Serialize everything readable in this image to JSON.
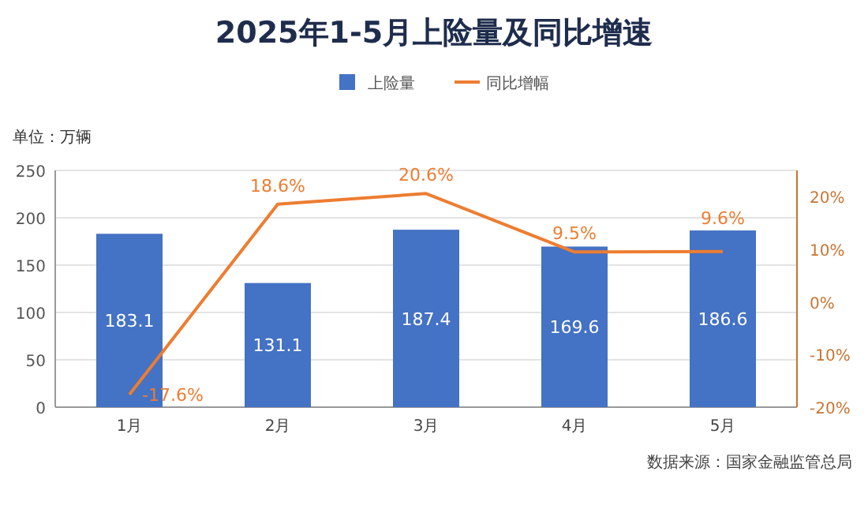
{
  "chart_data": {
    "type": "bar",
    "title": "2025年1-5月上险量及同比增速",
    "ylabel": "单位：万辆",
    "categories": [
      "1月",
      "2月",
      "3月",
      "4月",
      "5月"
    ],
    "series": [
      {
        "name": "上险量",
        "color": "#4472c4",
        "values": [
          183.1,
          131.1,
          187.4,
          169.6,
          186.6
        ],
        "value_labels": [
          "183.1",
          "131.1",
          "187.4",
          "169.6",
          "186.6"
        ]
      },
      {
        "name": "同比增幅",
        "type": "line",
        "axis": "y2",
        "color": "#ed7d31",
        "values": [
          -17.6,
          18.6,
          20.6,
          9.5,
          9.6
        ],
        "value_labels": [
          "-17.6%",
          "18.6%",
          "20.6%",
          "9.5%",
          "9.6%"
        ]
      }
    ],
    "ylim": [
      0,
      250
    ],
    "yticks": [
      0,
      50,
      100,
      150,
      200,
      250
    ],
    "y2lim": [
      -20,
      25
    ],
    "y2ticks": [
      {
        "value": -20,
        "label": "-20%"
      },
      {
        "value": -10,
        "label": "-10%"
      },
      {
        "value": 0,
        "label": "0%"
      },
      {
        "value": 10,
        "label": "10%"
      },
      {
        "value": 20,
        "label": "20%"
      }
    ],
    "grid": "y",
    "legend": "top",
    "marker": "none",
    "line_style": "solid",
    "annotations": [
      "数据来源：国家金融监管总局"
    ]
  }
}
